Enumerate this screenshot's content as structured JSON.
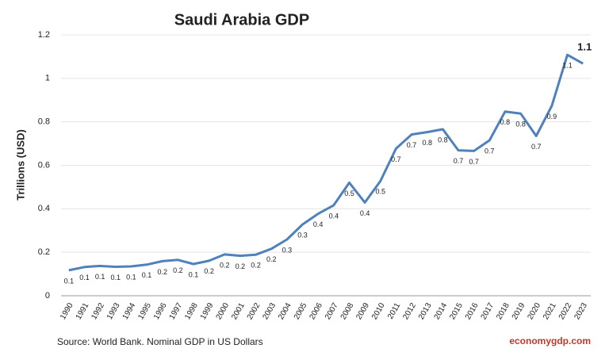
{
  "chart_data": {
    "type": "line",
    "title": "Saudi Arabia GDP",
    "y_label": "Trillions (USD)",
    "source": "Source: World Bank.  Nominal GDP in US Dollars",
    "watermark": "economygdp.com",
    "categories": [
      "1990",
      "1991",
      "1992",
      "1993",
      "1994",
      "1995",
      "1996",
      "1997",
      "1998",
      "1999",
      "2000",
      "2001",
      "2002",
      "2003",
      "2004",
      "2005",
      "2006",
      "2007",
      "2008",
      "2009",
      "2010",
      "2011",
      "2012",
      "2013",
      "2014",
      "2015",
      "2016",
      "2017",
      "2018",
      "2019",
      "2020",
      "2021",
      "2022",
      "2023"
    ],
    "values": [
      0.117,
      0.132,
      0.137,
      0.133,
      0.135,
      0.143,
      0.159,
      0.165,
      0.146,
      0.161,
      0.19,
      0.184,
      0.189,
      0.216,
      0.259,
      0.328,
      0.377,
      0.416,
      0.52,
      0.429,
      0.528,
      0.677,
      0.742,
      0.753,
      0.766,
      0.669,
      0.666,
      0.715,
      0.847,
      0.838,
      0.735,
      0.874,
      1.108,
      1.068
    ],
    "value_labels": [
      "0.1",
      "0.1",
      "0.1",
      "0.1",
      "0.1",
      "0.1",
      "0.2",
      "0.2",
      "0.1",
      "0.2",
      "0.2",
      "0.2",
      "0.2",
      "0.2",
      "0.3",
      "0.3",
      "0.4",
      "0.4",
      "0.5",
      "0.4",
      "0.5",
      "0.7",
      "0.7",
      "0.8",
      "0.8",
      "0.7",
      "0.7",
      "0.7",
      "0.8",
      "0.8",
      "0.7",
      "0.9",
      "1.1",
      "1.1"
    ],
    "color": "#4f81bd",
    "ylim": [
      0,
      1.2
    ],
    "yticks": [
      0,
      0.2,
      0.4,
      0.6,
      0.8,
      1,
      1.2
    ],
    "grid": true
  }
}
